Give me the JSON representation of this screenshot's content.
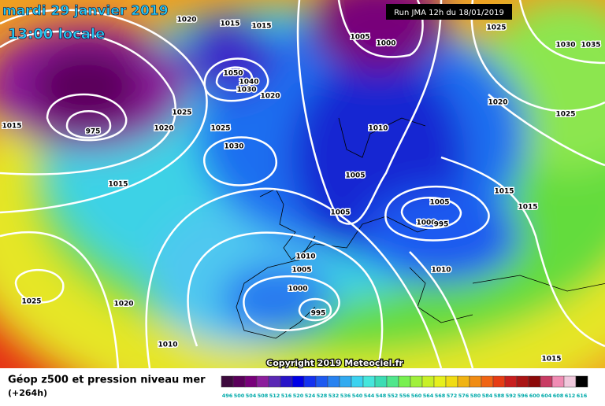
{
  "header": {
    "title": "mardi 29 janvier 2019",
    "subtitle": "13:00 locale",
    "run": "Run JMA 12h du 18/01/2019"
  },
  "map": {
    "isobar_labels": [
      "1020",
      "1015",
      "1015",
      "1005",
      "1000",
      "1025",
      "1030",
      "1035",
      "1050",
      "1040",
      "1030",
      "1020",
      "1020",
      "1025",
      "1025",
      "1015",
      "1020",
      "1025",
      "1010",
      "975",
      "1030",
      "1015",
      "1005",
      "1015",
      "1005",
      "1005",
      "1015",
      "1000",
      "995",
      "1010",
      "1005",
      "1010",
      "1000",
      "995",
      "1025",
      "1020",
      "1010",
      "1015"
    ],
    "copyright": "Copyright 2019 Meteociel.fr"
  },
  "footer": {
    "title": "Géop z500 et pression niveau mer",
    "lead_time": "(+264h)",
    "scale_labels": [
      496,
      500,
      504,
      508,
      512,
      516,
      520,
      524,
      528,
      532,
      536,
      540,
      544,
      548,
      552,
      556,
      560,
      564,
      568,
      572,
      576,
      580,
      584,
      588,
      592,
      596,
      600,
      604,
      608,
      612,
      616
    ],
    "scale_colors": [
      "#3d0a3d",
      "#5a005a",
      "#78007a",
      "#8c1e9c",
      "#5a28b4",
      "#2814c8",
      "#0000e6",
      "#1432f0",
      "#1e5af0",
      "#2882f0",
      "#32aaf0",
      "#3cd2f0",
      "#46e6dc",
      "#3cdcb4",
      "#50e68c",
      "#78f050",
      "#a0f03c",
      "#c8f028",
      "#e6f01e",
      "#f0dc14",
      "#f0b414",
      "#f08c14",
      "#f06414",
      "#e63c14",
      "#c81e1e",
      "#aa1414",
      "#8c0a0a",
      "#c83c64",
      "#f08cb4",
      "#f0c8dc",
      "#000000"
    ]
  }
}
